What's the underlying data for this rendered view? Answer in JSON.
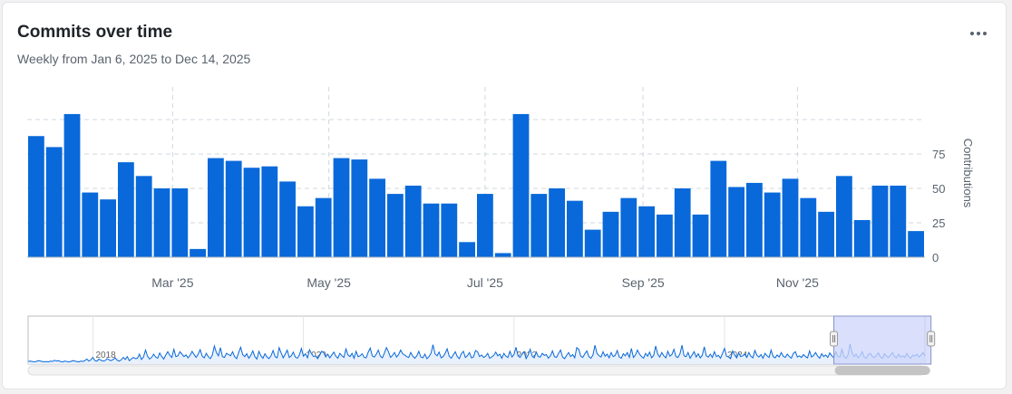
{
  "header": {
    "title": "Commits over time",
    "subtitle": "Weekly from Jan 6, 2025 to Dec 14, 2025",
    "menu_icon": "kebab-horizontal-icon"
  },
  "colors": {
    "bar": "#0969da",
    "grid": "#d0d7de",
    "axis_text": "#59636e",
    "line": "#0969da",
    "window_fill": "#cdd6fb",
    "window_stroke": "#8792c9",
    "scrollbar": "#c4c4c4"
  },
  "chart_data": [
    {
      "type": "bar",
      "title": "Commits over time",
      "subtitle": "Weekly from Jan 6, 2025 to Dec 14, 2025",
      "ylabel": "Contributions",
      "ylim": [
        0,
        100
      ],
      "yticks": [
        0,
        25,
        50,
        75
      ],
      "y_axis_position": "right",
      "grid": true,
      "xticks": [
        {
          "label": "Mar '25",
          "index": 8.1
        },
        {
          "label": "May '25",
          "index": 16.8
        },
        {
          "label": "Jul '25",
          "index": 25.5
        },
        {
          "label": "Sep '25",
          "index": 34.3
        },
        {
          "label": "Nov '25",
          "index": 42.9
        }
      ],
      "values": [
        88,
        80,
        104,
        47,
        42,
        69,
        59,
        50,
        50,
        6,
        72,
        70,
        65,
        66,
        55,
        37,
        43,
        72,
        71,
        57,
        46,
        52,
        39,
        39,
        11,
        46,
        3,
        104,
        46,
        50,
        41,
        20,
        33,
        43,
        37,
        31,
        50,
        31,
        70,
        51,
        54,
        47,
        57,
        43,
        33,
        59,
        27,
        52,
        52,
        19
      ]
    },
    {
      "type": "line",
      "role": "range-navigator",
      "ylim": [
        0,
        100
      ],
      "grid": true,
      "xticks": [
        {
          "label": "2018",
          "index": 32
        },
        {
          "label": "2020",
          "index": 136
        },
        {
          "label": "2022",
          "index": 240
        },
        {
          "label": "2024",
          "index": 344
        }
      ],
      "selected_range": [
        398,
        446
      ],
      "values": [
        2,
        3,
        2,
        1,
        2,
        4,
        3,
        2,
        1,
        2,
        1,
        3,
        2,
        5,
        3,
        4,
        2,
        1,
        3,
        2,
        1,
        2,
        4,
        3,
        2,
        1,
        3,
        2,
        4,
        8,
        3,
        6,
        12,
        4,
        3,
        8,
        5,
        3,
        4,
        9,
        6,
        4,
        7,
        11,
        5,
        3,
        6,
        12,
        7,
        14,
        4,
        8,
        12,
        9,
        10,
        20,
        7,
        13,
        30,
        15,
        8,
        12,
        20,
        13,
        10,
        23,
        14,
        8,
        18,
        26,
        17,
        12,
        32,
        14,
        16,
        26,
        20,
        14,
        18,
        11,
        17,
        27,
        19,
        12,
        20,
        31,
        15,
        11,
        22,
        14,
        9,
        18,
        40,
        24,
        16,
        36,
        14,
        12,
        22,
        19,
        16,
        26,
        14,
        9,
        24,
        37,
        19,
        14,
        21,
        10,
        17,
        28,
        14,
        8,
        27,
        16,
        10,
        21,
        13,
        9,
        16,
        29,
        14,
        11,
        36,
        23,
        11,
        20,
        30,
        12,
        16,
        25,
        13,
        10,
        18,
        34,
        15,
        21,
        11,
        31,
        21,
        14,
        16,
        9,
        17,
        27,
        24,
        13,
        20,
        11,
        18,
        25,
        15,
        10,
        22,
        16,
        12,
        33,
        18,
        14,
        22,
        10,
        27,
        14,
        16,
        21,
        12,
        11,
        25,
        35,
        16,
        13,
        20,
        30,
        15,
        11,
        23,
        36,
        26,
        12,
        17,
        24,
        13,
        19,
        30,
        21,
        18,
        14,
        12,
        24,
        15,
        10,
        16,
        27,
        13,
        11,
        20,
        9,
        14,
        22,
        43,
        21,
        16,
        25,
        11,
        14,
        22,
        33,
        15,
        10,
        18,
        26,
        14,
        9,
        21,
        27,
        12,
        16,
        24,
        11,
        13,
        29,
        26,
        14,
        18,
        12,
        15,
        22,
        10,
        13,
        17,
        25,
        16,
        20,
        10,
        22,
        15,
        12,
        27,
        13,
        19,
        37,
        16,
        12,
        20,
        26,
        9,
        18,
        32,
        15,
        11,
        25,
        14,
        13,
        22,
        17,
        19,
        10,
        16,
        28,
        14,
        12,
        22,
        30,
        13,
        9,
        17,
        24,
        14,
        19,
        11,
        36,
        32,
        15,
        12,
        21,
        28,
        14,
        10,
        18,
        42,
        22,
        16,
        13,
        26,
        15,
        20,
        11,
        24,
        14,
        17,
        29,
        13,
        10,
        21,
        16,
        24,
        12,
        34,
        12,
        18,
        30,
        20,
        14,
        10,
        22,
        15,
        25,
        11,
        17,
        40,
        20,
        13,
        24,
        16,
        11,
        27,
        15,
        19,
        32,
        14,
        12,
        21,
        42,
        16,
        14,
        24,
        10,
        18,
        26,
        13,
        21,
        11,
        17,
        38,
        16,
        13,
        20,
        12,
        26,
        14,
        17,
        10,
        22,
        34,
        15,
        13,
        9,
        28,
        18,
        11,
        23,
        14,
        16,
        20,
        12,
        24,
        15,
        11,
        29,
        17,
        13,
        19,
        10,
        22,
        16,
        12,
        30,
        14,
        11,
        18,
        13,
        24,
        15,
        12,
        20,
        14,
        10,
        22,
        26,
        13,
        16,
        12,
        19,
        14,
        11,
        28,
        13,
        17,
        24,
        15,
        10,
        21,
        14,
        18,
        12,
        23,
        16,
        11,
        26,
        14,
        13,
        32,
        14,
        10,
        18,
        45,
        24,
        14,
        20,
        11,
        16,
        26,
        13,
        10,
        19,
        22,
        14,
        12,
        17,
        23,
        13,
        10,
        21,
        15,
        12,
        18,
        24,
        14,
        11,
        20,
        13,
        16,
        12,
        22,
        14,
        10,
        18,
        15,
        20,
        13,
        17,
        24,
        15
      ]
    }
  ]
}
